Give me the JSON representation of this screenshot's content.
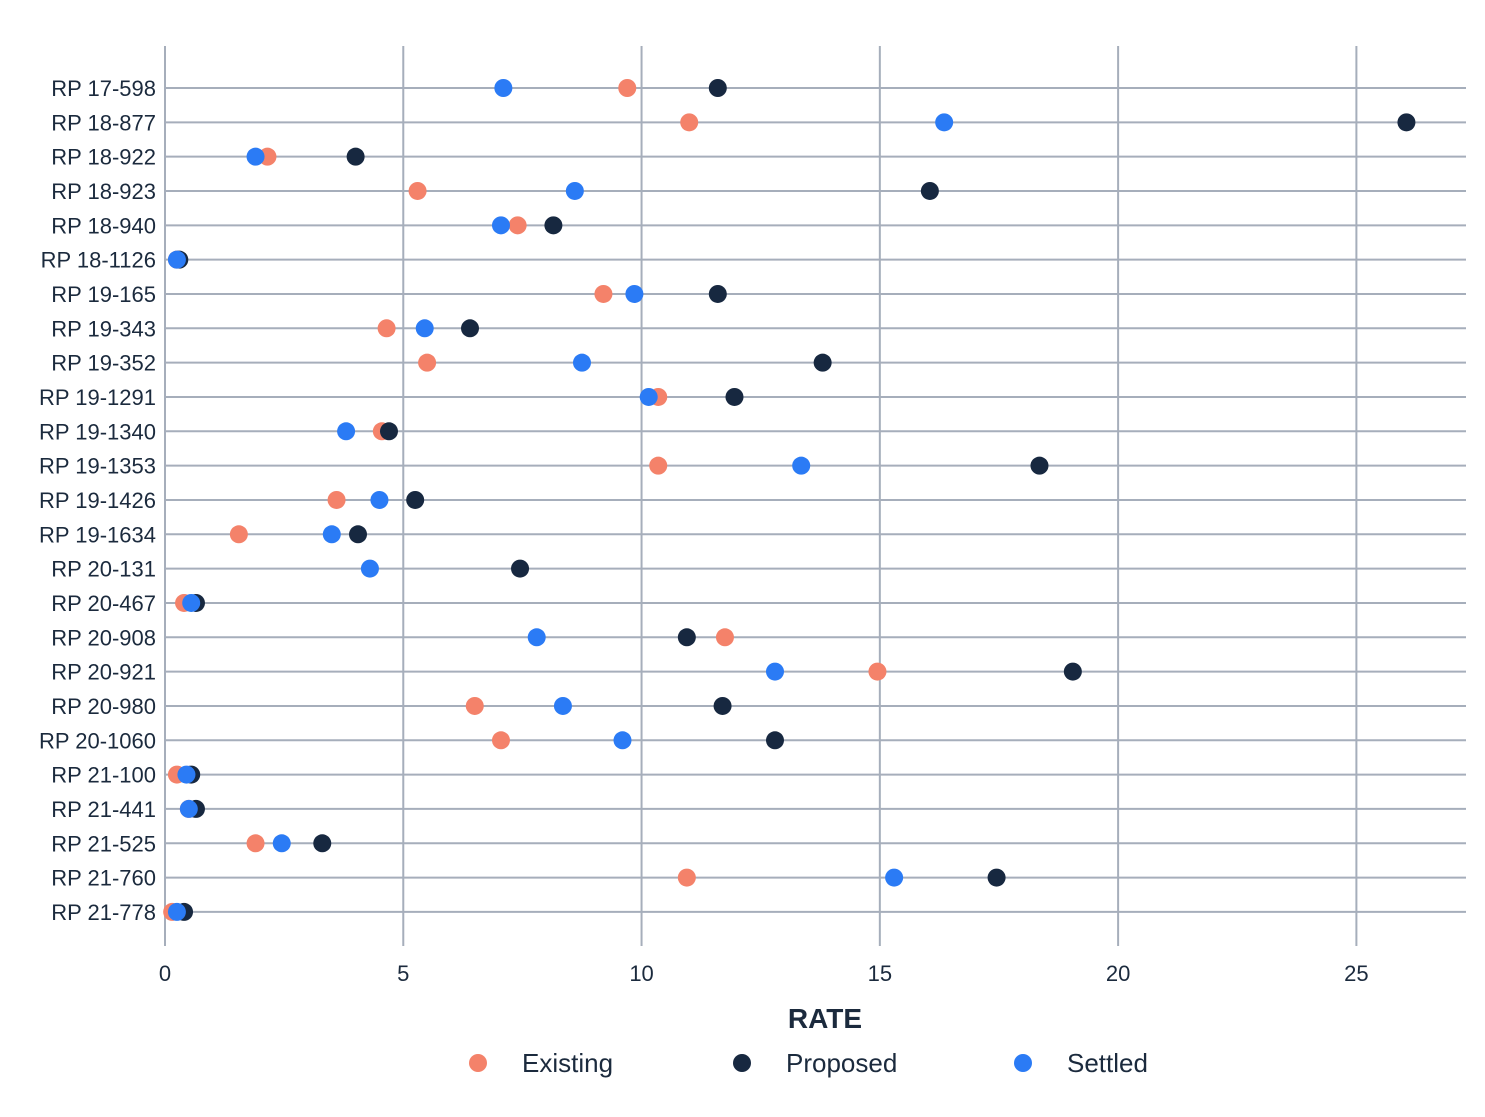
{
  "chart_data": {
    "type": "scatter",
    "orientation": "horizontal-dot-plot",
    "title": "",
    "xlabel": "RATE",
    "ylabel": "",
    "xlim": [
      0,
      27.3
    ],
    "xticks": [
      0,
      5,
      10,
      15,
      20,
      25
    ],
    "grid": true,
    "legend_position": "bottom",
    "categories": [
      "RP 17-598",
      "RP 18-877",
      "RP 18-922",
      "RP 18-923",
      "RP 18-940",
      "RP 18-1126",
      "RP 19-165",
      "RP 19-343",
      "RP 19-352",
      "RP 19-1291",
      "RP 19-1340",
      "RP 19-1353",
      "RP 19-1426",
      "RP 19-1634",
      "RP 20-131",
      "RP 20-467",
      "RP 20-908",
      "RP 20-921",
      "RP 20-980",
      "RP 20-1060",
      "RP 21-100",
      "RP 21-441",
      "RP 21-525",
      "RP 21-760",
      "RP 21-778"
    ],
    "series": [
      {
        "name": "Existing",
        "color": "#f4826a",
        "values": [
          9.7,
          11.0,
          2.15,
          5.3,
          7.4,
          0.25,
          9.2,
          4.65,
          5.5,
          10.35,
          4.55,
          10.35,
          3.6,
          1.55,
          null,
          0.4,
          11.75,
          14.95,
          6.5,
          7.05,
          0.25,
          0.5,
          1.9,
          10.95,
          0.15
        ]
      },
      {
        "name": "Proposed",
        "color": "#172840",
        "values": [
          11.6,
          26.05,
          4.0,
          16.05,
          8.15,
          0.3,
          11.6,
          6.4,
          13.8,
          11.95,
          4.7,
          18.35,
          5.25,
          4.05,
          7.45,
          0.65,
          10.95,
          19.05,
          11.7,
          12.8,
          0.55,
          0.65,
          3.3,
          17.45,
          0.4
        ]
      },
      {
        "name": "Settled",
        "color": "#2b7bf5",
        "values": [
          7.1,
          16.35,
          1.9,
          8.6,
          7.05,
          0.25,
          9.85,
          5.45,
          8.75,
          10.15,
          3.8,
          13.35,
          4.5,
          3.5,
          4.3,
          0.55,
          7.8,
          12.8,
          8.35,
          9.6,
          0.45,
          0.5,
          2.45,
          15.3,
          0.25
        ]
      }
    ]
  }
}
